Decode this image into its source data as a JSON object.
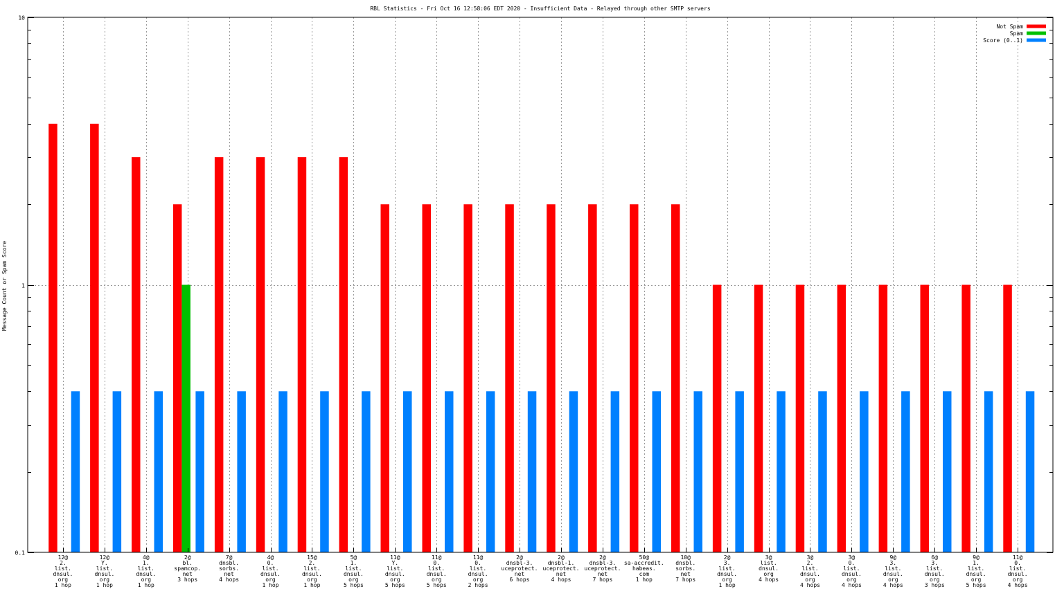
{
  "chart_data": {
    "type": "bar",
    "title": "RBL Statistics - Fri Oct 16 12:58:06 EDT 2020 - Insufficient Data - Relayed through other SMTP servers",
    "xlabel": "",
    "ylabel": "Message Count or Spam Score",
    "yscale": "log",
    "ylim": [
      0.1,
      10
    ],
    "yticks": [
      {
        "value": 0.1,
        "label": "0.1"
      },
      {
        "value": 1,
        "label": "1"
      },
      {
        "value": 10,
        "label": "10"
      }
    ],
    "grid": true,
    "legend_position": "top-right",
    "categories": [
      [
        "12@",
        "2.",
        "list.",
        "dnsul.",
        "org",
        "1 hop"
      ],
      [
        "12@",
        "Y.",
        "list.",
        "dnsul.",
        "org",
        "1 hop"
      ],
      [
        "4@",
        "1.",
        "list.",
        "dnsul.",
        "org",
        "1 hop"
      ],
      [
        "2@",
        "bl.",
        "spamcop.",
        "net",
        "3 hops"
      ],
      [
        "7@",
        "dnsbl.",
        "sorbs.",
        "net",
        "4 hops"
      ],
      [
        "4@",
        "0.",
        "list.",
        "dnsul.",
        "org",
        "1 hop"
      ],
      [
        "15@",
        "2.",
        "list.",
        "dnsul.",
        "org",
        "1 hop"
      ],
      [
        "5@",
        "1.",
        "list.",
        "dnsul.",
        "org",
        "5 hops"
      ],
      [
        "11@",
        "Y.",
        "list.",
        "dnsul.",
        "org",
        "5 hops"
      ],
      [
        "11@",
        "0.",
        "list.",
        "dnsul.",
        "org",
        "5 hops"
      ],
      [
        "11@",
        "0.",
        "list.",
        "dnsul.",
        "org",
        "2 hops"
      ],
      [
        "2@",
        "dnsbl-3.",
        "uceprotect.",
        "net",
        "6 hops"
      ],
      [
        "2@",
        "dnsbl-1.",
        "uceprotect.",
        "net",
        "4 hops"
      ],
      [
        "2@",
        "dnsbl-3.",
        "uceprotect.",
        "net",
        "7 hops"
      ],
      [
        "50@",
        "sa-accredit.",
        "habeas.",
        "com",
        "1 hop"
      ],
      [
        "10@",
        "dnsbl.",
        "sorbs.",
        "net",
        "7 hops"
      ],
      [
        "2@",
        "3.",
        "list.",
        "dnsul.",
        "org",
        "1 hop"
      ],
      [
        "3@",
        "list.",
        "dnsul.",
        "org",
        "4 hops"
      ],
      [
        "3@",
        "2.",
        "list.",
        "dnsul.",
        "org",
        "4 hops"
      ],
      [
        "3@",
        "0.",
        "list.",
        "dnsul.",
        "org",
        "4 hops"
      ],
      [
        "9@",
        "3.",
        "list.",
        "dnsul.",
        "org",
        "4 hops"
      ],
      [
        "6@",
        "3.",
        "list.",
        "dnsul.",
        "org",
        "3 hops"
      ],
      [
        "9@",
        "1.",
        "list.",
        "dnsul.",
        "org",
        "5 hops"
      ],
      [
        "11@",
        "0.",
        "list.",
        "dnsul.",
        "org",
        "4 hops"
      ]
    ],
    "series": [
      {
        "name": "Not Spam",
        "color": "#ff0000",
        "values": [
          4,
          4,
          3,
          2,
          3,
          3,
          3,
          3,
          2,
          2,
          2,
          2,
          2,
          2,
          2,
          2,
          1,
          1,
          1,
          1,
          1,
          1,
          1,
          1
        ]
      },
      {
        "name": "Spam",
        "color": "#00c000",
        "values": [
          0,
          0,
          0,
          1,
          0,
          0,
          0,
          0,
          0,
          0,
          0,
          0,
          0,
          0,
          0,
          0,
          0,
          0,
          0,
          0,
          0,
          0,
          0,
          0
        ]
      },
      {
        "name": "Score (0..1)",
        "color": "#0080ff",
        "values": [
          0.4,
          0.4,
          0.4,
          0.4,
          0.4,
          0.4,
          0.4,
          0.4,
          0.4,
          0.4,
          0.4,
          0.4,
          0.4,
          0.4,
          0.4,
          0.4,
          0.4,
          0.4,
          0.4,
          0.4,
          0.4,
          0.4,
          0.4,
          0.4
        ]
      }
    ]
  }
}
